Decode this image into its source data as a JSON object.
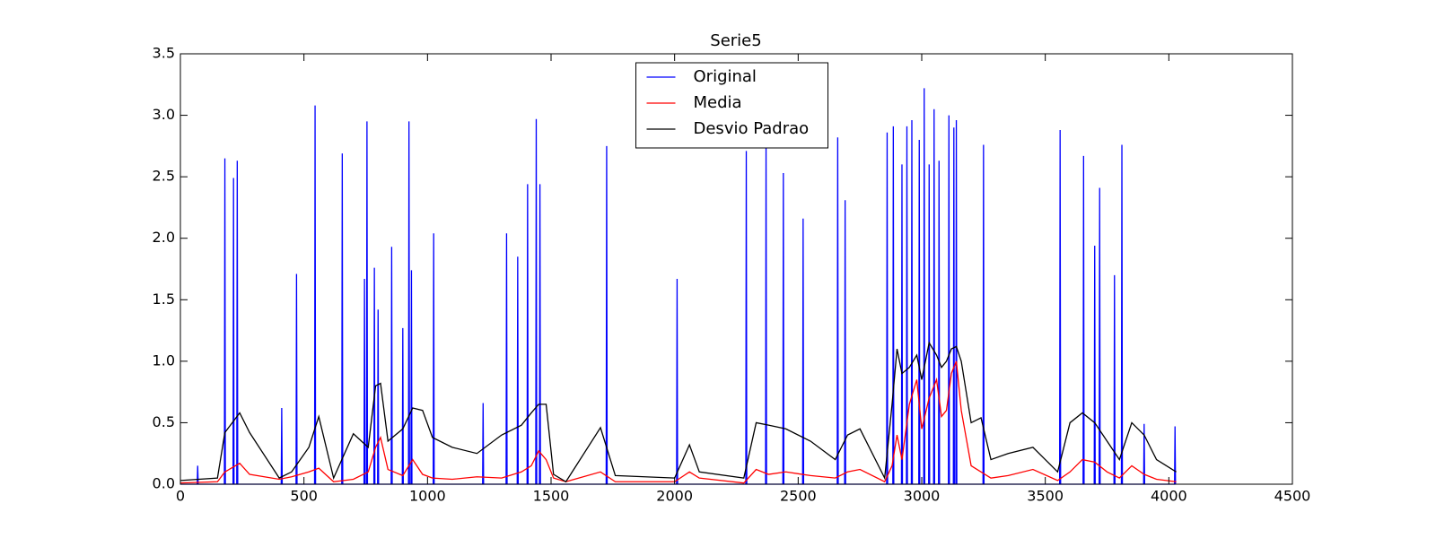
{
  "chart_data": {
    "type": "line",
    "title": "Serie5",
    "xlim": [
      0,
      4500
    ],
    "xticks": [
      0,
      500,
      1000,
      1500,
      2000,
      2500,
      3000,
      3500,
      4000,
      4500
    ],
    "ylim": [
      0,
      3.5
    ],
    "yticks": [
      {
        "value": 0,
        "label": "0.0"
      },
      0.5,
      {
        "value": 1,
        "label": "1.0"
      },
      1.5,
      {
        "value": 2,
        "label": "2.0"
      },
      2.5,
      {
        "value": 3,
        "label": "3.0"
      },
      3.5
    ],
    "legend": "upper center",
    "series": [
      {
        "name": "Original",
        "color": "#0000ff",
        "x": [
          0,
          68,
          70,
          72,
          178,
          180,
          182,
          213,
          215,
          217,
          228,
          230,
          232,
          408,
          410,
          412,
          468,
          470,
          472,
          543,
          545,
          547,
          653,
          655,
          657,
          743,
          745,
          747,
          753,
          755,
          757,
          783,
          785,
          787,
          798,
          800,
          802,
          853,
          855,
          857,
          898,
          900,
          902,
          923,
          925,
          927,
          933,
          935,
          937,
          1023,
          1025,
          1027,
          1223,
          1225,
          1227,
          1318,
          1320,
          1322,
          1363,
          1365,
          1367,
          1403,
          1405,
          1407,
          1438,
          1440,
          1442,
          1453,
          1455,
          1457,
          1723,
          1725,
          1727,
          2008,
          2010,
          2012,
          2288,
          2290,
          2292,
          2368,
          2370,
          2372,
          2438,
          2440,
          2442,
          2518,
          2520,
          2522,
          2658,
          2660,
          2662,
          2688,
          2690,
          2692,
          2858,
          2860,
          2862,
          2883,
          2885,
          2887,
          2918,
          2920,
          2922,
          2938,
          2940,
          2942,
          2958,
          2960,
          2962,
          2988,
          2990,
          2992,
          3008,
          3010,
          3012,
          3028,
          3030,
          3032,
          3048,
          3050,
          3052,
          3068,
          3070,
          3072,
          3108,
          3110,
          3112,
          3128,
          3130,
          3132,
          3138,
          3140,
          3142,
          3248,
          3250,
          3252,
          3558,
          3560,
          3562,
          3653,
          3655,
          3657,
          3698,
          3700,
          3702,
          3718,
          3720,
          3722,
          3778,
          3780,
          3782,
          3808,
          3810,
          3812,
          3898,
          3900,
          3902,
          4023,
          4025,
          4027
        ],
        "values": [
          0,
          0,
          0.15,
          0,
          0,
          2.65,
          0,
          0,
          2.49,
          0,
          0,
          2.63,
          0,
          0,
          0.62,
          0,
          0,
          1.71,
          0,
          0,
          3.08,
          0,
          0,
          2.69,
          0,
          0,
          1.67,
          0,
          0,
          2.95,
          0,
          0,
          1.76,
          0,
          0,
          1.42,
          0,
          0,
          1.93,
          0,
          0,
          1.27,
          0,
          0,
          2.95,
          0,
          0,
          1.74,
          0,
          0,
          2.04,
          0,
          0,
          0.66,
          0,
          0,
          2.04,
          0,
          0,
          1.85,
          0,
          0,
          2.44,
          0,
          0,
          2.97,
          0,
          0,
          2.44,
          0,
          0,
          2.75,
          0,
          0,
          1.67,
          0,
          0,
          2.71,
          0,
          0,
          2.85,
          0,
          0,
          2.53,
          0,
          0,
          2.16,
          0,
          0,
          2.82,
          0,
          0,
          2.31,
          0,
          0,
          2.86,
          0,
          0,
          2.91,
          0,
          0,
          2.6,
          0,
          0,
          2.91,
          0,
          0,
          2.96,
          0,
          0,
          2.8,
          0,
          0,
          3.22,
          0,
          0,
          2.6,
          0,
          0,
          3.05,
          0,
          0,
          2.63,
          0,
          0,
          3.0,
          0,
          0,
          2.9,
          0,
          0,
          2.96,
          0,
          0,
          2.76,
          0,
          0,
          2.88,
          0,
          0,
          2.67,
          0,
          0,
          1.94,
          0,
          0,
          2.41,
          0,
          0,
          1.7,
          0,
          0,
          2.76,
          0,
          0,
          0.49,
          0,
          0,
          0.47,
          0
        ]
      },
      {
        "name": "Media",
        "color": "#ff0000",
        "x": [
          0,
          150,
          180,
          240,
          280,
          400,
          450,
          520,
          560,
          620,
          700,
          760,
          790,
          810,
          840,
          900,
          940,
          980,
          1020,
          1100,
          1200,
          1300,
          1380,
          1420,
          1450,
          1480,
          1510,
          1560,
          1700,
          1760,
          2000,
          2060,
          2100,
          2280,
          2330,
          2380,
          2450,
          2550,
          2650,
          2700,
          2750,
          2850,
          2880,
          2900,
          2920,
          2950,
          2980,
          3000,
          3030,
          3060,
          3080,
          3100,
          3120,
          3140,
          3160,
          3200,
          3240,
          3280,
          3350,
          3450,
          3550,
          3600,
          3650,
          3700,
          3750,
          3800,
          3850,
          3900,
          3950,
          4030
        ],
        "values": [
          0.01,
          0.02,
          0.1,
          0.17,
          0.08,
          0.04,
          0.06,
          0.1,
          0.13,
          0.02,
          0.04,
          0.1,
          0.3,
          0.38,
          0.12,
          0.07,
          0.2,
          0.08,
          0.05,
          0.04,
          0.06,
          0.05,
          0.1,
          0.15,
          0.27,
          0.2,
          0.05,
          0.02,
          0.1,
          0.02,
          0.02,
          0.1,
          0.05,
          0.01,
          0.12,
          0.08,
          0.1,
          0.07,
          0.05,
          0.1,
          0.12,
          0.02,
          0.15,
          0.4,
          0.2,
          0.65,
          0.85,
          0.45,
          0.7,
          0.85,
          0.55,
          0.6,
          0.9,
          1.0,
          0.6,
          0.15,
          0.1,
          0.05,
          0.07,
          0.12,
          0.03,
          0.1,
          0.2,
          0.18,
          0.1,
          0.05,
          0.15,
          0.08,
          0.04,
          0.02
        ]
      },
      {
        "name": "Desvio Padrao",
        "color": "#000000",
        "x": [
          0,
          150,
          180,
          240,
          280,
          400,
          450,
          520,
          560,
          620,
          700,
          760,
          790,
          810,
          840,
          900,
          940,
          980,
          1020,
          1100,
          1200,
          1300,
          1380,
          1420,
          1450,
          1480,
          1510,
          1560,
          1700,
          1760,
          2000,
          2060,
          2100,
          2280,
          2330,
          2380,
          2450,
          2550,
          2650,
          2700,
          2750,
          2850,
          2880,
          2900,
          2920,
          2950,
          2980,
          3000,
          3030,
          3060,
          3080,
          3100,
          3120,
          3140,
          3160,
          3200,
          3240,
          3280,
          3350,
          3450,
          3550,
          3600,
          3650,
          3700,
          3750,
          3800,
          3850,
          3900,
          3950,
          4030
        ],
        "values": [
          0.03,
          0.05,
          0.42,
          0.58,
          0.42,
          0.05,
          0.1,
          0.3,
          0.55,
          0.05,
          0.41,
          0.3,
          0.8,
          0.82,
          0.35,
          0.45,
          0.62,
          0.6,
          0.38,
          0.3,
          0.25,
          0.4,
          0.48,
          0.58,
          0.65,
          0.65,
          0.08,
          0.02,
          0.46,
          0.07,
          0.05,
          0.32,
          0.1,
          0.05,
          0.5,
          0.48,
          0.45,
          0.35,
          0.2,
          0.4,
          0.45,
          0.05,
          0.65,
          1.1,
          0.9,
          0.95,
          1.05,
          0.85,
          1.15,
          1.05,
          0.95,
          1.0,
          1.1,
          1.12,
          1.0,
          0.5,
          0.54,
          0.2,
          0.25,
          0.3,
          0.1,
          0.5,
          0.58,
          0.5,
          0.35,
          0.2,
          0.5,
          0.4,
          0.2,
          0.1
        ]
      }
    ]
  }
}
